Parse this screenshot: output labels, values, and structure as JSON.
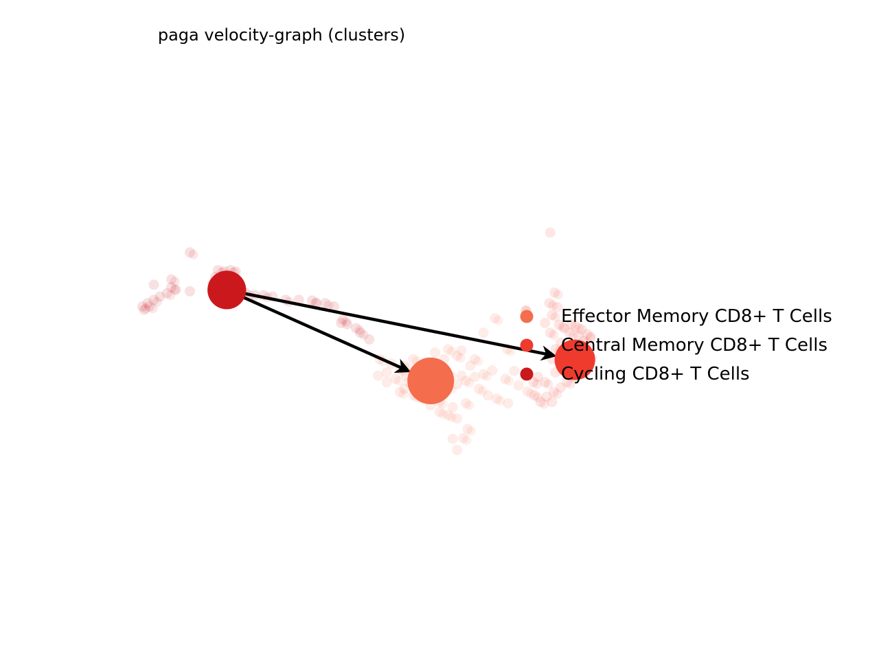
{
  "chart_data": {
    "type": "scatter",
    "title": "paga velocity-graph (clusters)",
    "xlabel": "",
    "ylabel": "",
    "axes_visible": false,
    "grid": false,
    "legend_position": "right",
    "series": [
      {
        "name": "Effector Memory CD8+ T Cells",
        "color": "#f46d4c",
        "node": [
          0.49,
          0.578
        ],
        "cells": [
          [
            0.432,
            0.545
          ],
          [
            0.445,
            0.552
          ],
          [
            0.455,
            0.561
          ],
          [
            0.462,
            0.57
          ],
          [
            0.47,
            0.578
          ],
          [
            0.48,
            0.585
          ],
          [
            0.49,
            0.59
          ],
          [
            0.5,
            0.592
          ],
          [
            0.51,
            0.588
          ],
          [
            0.52,
            0.583
          ],
          [
            0.53,
            0.578
          ],
          [
            0.54,
            0.572
          ],
          [
            0.55,
            0.568
          ],
          [
            0.56,
            0.562
          ],
          [
            0.575,
            0.575
          ],
          [
            0.59,
            0.585
          ],
          [
            0.6,
            0.594
          ],
          [
            0.46,
            0.59
          ],
          [
            0.47,
            0.6
          ],
          [
            0.48,
            0.605
          ],
          [
            0.5,
            0.61
          ],
          [
            0.515,
            0.618
          ],
          [
            0.53,
            0.612
          ],
          [
            0.44,
            0.58
          ],
          [
            0.45,
            0.575
          ],
          [
            0.475,
            0.56
          ],
          [
            0.485,
            0.55
          ],
          [
            0.505,
            0.545
          ],
          [
            0.52,
            0.54
          ],
          [
            0.535,
            0.555
          ],
          [
            0.545,
            0.59
          ],
          [
            0.555,
            0.6
          ],
          [
            0.565,
            0.605
          ],
          [
            0.578,
            0.612
          ],
          [
            0.51,
            0.63
          ],
          [
            0.52,
            0.635
          ],
          [
            0.5,
            0.625
          ],
          [
            0.49,
            0.615
          ],
          [
            0.46,
            0.555
          ],
          [
            0.44,
            0.565
          ],
          [
            0.47,
            0.545
          ],
          [
            0.495,
            0.535
          ],
          [
            0.51,
            0.53
          ],
          [
            0.525,
            0.532
          ],
          [
            0.54,
            0.545
          ],
          [
            0.43,
            0.57
          ],
          [
            0.455,
            0.595
          ],
          [
            0.465,
            0.58
          ],
          [
            0.51,
            0.568
          ],
          [
            0.525,
            0.57
          ]
        ],
        "outliers": [
          [
            0.532,
            0.651
          ],
          [
            0.515,
            0.666
          ],
          [
            0.527,
            0.665
          ],
          [
            0.52,
            0.683
          ],
          [
            0.563,
            0.483
          ],
          [
            0.55,
            0.505
          ],
          [
            0.577,
            0.53
          ],
          [
            0.585,
            0.563
          ]
        ]
      },
      {
        "name": "Central Memory CD8+ T Cells",
        "color": "#ee3b2e",
        "node": [
          0.654,
          0.546
        ],
        "cells": [
          [
            0.655,
            0.495
          ],
          [
            0.662,
            0.5
          ],
          [
            0.668,
            0.507
          ],
          [
            0.672,
            0.513
          ],
          [
            0.664,
            0.517
          ],
          [
            0.658,
            0.51
          ],
          [
            0.648,
            0.505
          ],
          [
            0.642,
            0.498
          ],
          [
            0.636,
            0.493
          ],
          [
            0.65,
            0.492
          ],
          [
            0.66,
            0.525
          ],
          [
            0.666,
            0.532
          ],
          [
            0.67,
            0.54
          ],
          [
            0.665,
            0.555
          ],
          [
            0.66,
            0.565
          ],
          [
            0.652,
            0.573
          ],
          [
            0.645,
            0.58
          ],
          [
            0.638,
            0.588
          ],
          [
            0.63,
            0.595
          ],
          [
            0.622,
            0.602
          ],
          [
            0.615,
            0.61
          ],
          [
            0.628,
            0.61
          ],
          [
            0.62,
            0.58
          ],
          [
            0.612,
            0.572
          ],
          [
            0.607,
            0.58
          ],
          [
            0.632,
            0.565
          ],
          [
            0.64,
            0.56
          ],
          [
            0.628,
            0.545
          ],
          [
            0.632,
            0.53
          ],
          [
            0.638,
            0.52
          ],
          [
            0.626,
            0.505
          ],
          [
            0.62,
            0.49
          ],
          [
            0.628,
            0.478
          ],
          [
            0.634,
            0.466
          ],
          [
            0.625,
            0.46
          ],
          [
            0.598,
            0.471
          ],
          [
            0.608,
            0.6
          ]
        ],
        "outliers": [
          [
            0.626,
            0.353
          ],
          [
            0.631,
            0.444
          ],
          [
            0.599,
            0.472
          ]
        ]
      },
      {
        "name": "Cycling CD8+ T Cells",
        "color": "#cb181d",
        "node": [
          0.258,
          0.44
        ],
        "cells": [
          [
            0.248,
            0.41
          ],
          [
            0.255,
            0.412
          ],
          [
            0.262,
            0.41
          ],
          [
            0.268,
            0.412
          ],
          [
            0.245,
            0.42
          ],
          [
            0.252,
            0.422
          ],
          [
            0.26,
            0.42
          ],
          [
            0.267,
            0.425
          ],
          [
            0.242,
            0.43
          ],
          [
            0.25,
            0.432
          ],
          [
            0.27,
            0.435
          ],
          [
            0.275,
            0.44
          ],
          [
            0.28,
            0.445
          ],
          [
            0.29,
            0.448
          ],
          [
            0.3,
            0.448
          ],
          [
            0.31,
            0.45
          ],
          [
            0.325,
            0.455
          ],
          [
            0.34,
            0.455
          ],
          [
            0.355,
            0.456
          ],
          [
            0.36,
            0.46
          ],
          [
            0.37,
            0.46
          ],
          [
            0.38,
            0.465
          ],
          [
            0.39,
            0.485
          ],
          [
            0.395,
            0.492
          ],
          [
            0.405,
            0.498
          ],
          [
            0.388,
            0.49
          ],
          [
            0.41,
            0.505
          ],
          [
            0.42,
            0.515
          ],
          [
            0.195,
            0.436
          ],
          [
            0.2,
            0.44
          ],
          [
            0.19,
            0.445
          ],
          [
            0.182,
            0.45
          ],
          [
            0.175,
            0.455
          ],
          [
            0.168,
            0.46
          ],
          [
            0.162,
            0.465
          ],
          [
            0.164,
            0.47
          ],
          [
            0.17,
            0.465
          ],
          [
            0.175,
            0.432
          ]
        ],
        "outliers": [
          [
            0.216,
            0.383
          ],
          [
            0.216,
            0.442
          ],
          [
            0.195,
            0.424
          ]
        ]
      }
    ],
    "edges": [
      {
        "from": "Cycling CD8+ T Cells",
        "to": "Effector Memory CD8+ T Cells"
      },
      {
        "from": "Cycling CD8+ T Cells",
        "to": "Central Memory CD8+ T Cells"
      }
    ],
    "node_sizes": {
      "Effector Memory CD8+ T Cells": 1.0,
      "Central Memory CD8+ T Cells": 0.68,
      "Cycling CD8+ T Cells": 0.58
    }
  }
}
